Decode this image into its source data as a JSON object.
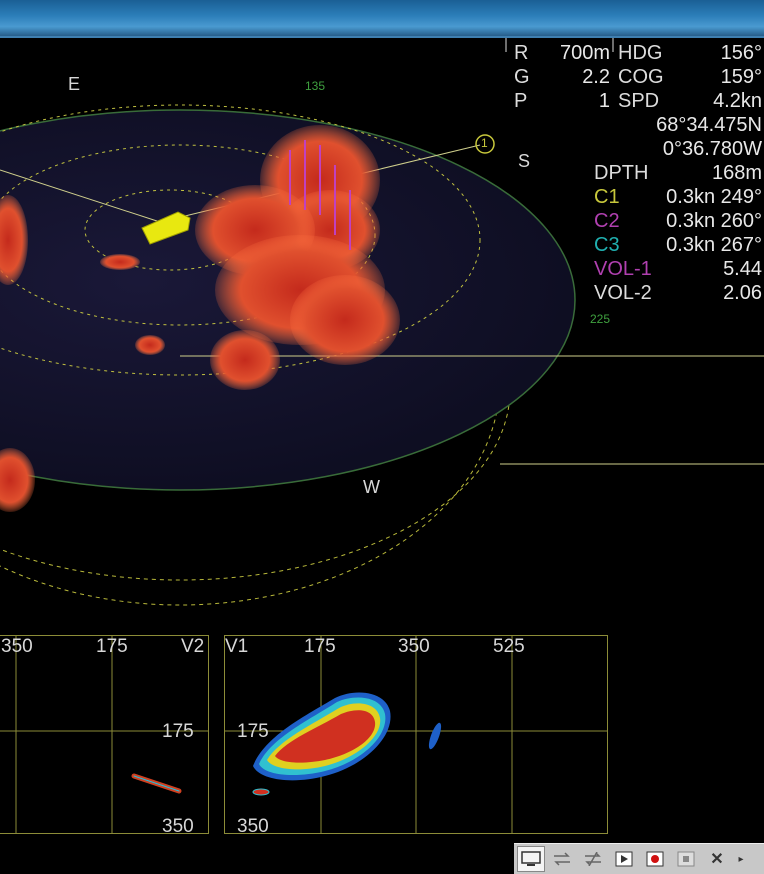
{
  "readout": {
    "range_label": "R",
    "range_value": "700m",
    "gain_label": "G",
    "gain_value": "2.2",
    "p_label": "P",
    "p_value": "1",
    "hdg_label": "HDG",
    "hdg_value": "156°",
    "cog_label": "COG",
    "cog_value": "159°",
    "spd_label": "SPD",
    "spd_value": "4.2kn",
    "lat": "68°34.475N",
    "lon": "0°36.780W",
    "depth_label": "DPTH",
    "depth_value": "168m",
    "c1_label": "C1",
    "c1_value": "0.3kn 249°",
    "c2_label": "C2",
    "c2_value": "0.3kn 260°",
    "c3_label": "C3",
    "c3_value": "0.3kn 267°",
    "vol1_label": "VOL-1",
    "vol1_value": "5.44",
    "vol2_label": "VOL-2",
    "vol2_value": "2.06",
    "colors": {
      "c1": "#c8c83c",
      "c2": "#b040b0",
      "c3": "#20b0b0",
      "vol1": "#b040b0"
    }
  },
  "compass": {
    "e": "E",
    "s": "S",
    "w": "W",
    "deg_135": "135",
    "deg_225": "225",
    "marker": "1"
  },
  "panel_left": {
    "t1": "350",
    "t2": "175",
    "name": "V2",
    "d1": "175",
    "d2": "350"
  },
  "panel_right": {
    "name": "V1",
    "t1": "175",
    "t2": "350",
    "t3": "525",
    "d1": "175",
    "d2": "350"
  },
  "toolbar": {
    "icons": [
      "monitor-icon",
      "sync-icon",
      "sync-off-icon",
      "play-icon",
      "record-icon",
      "stop-icon",
      "tools-icon",
      "more-icon"
    ]
  }
}
